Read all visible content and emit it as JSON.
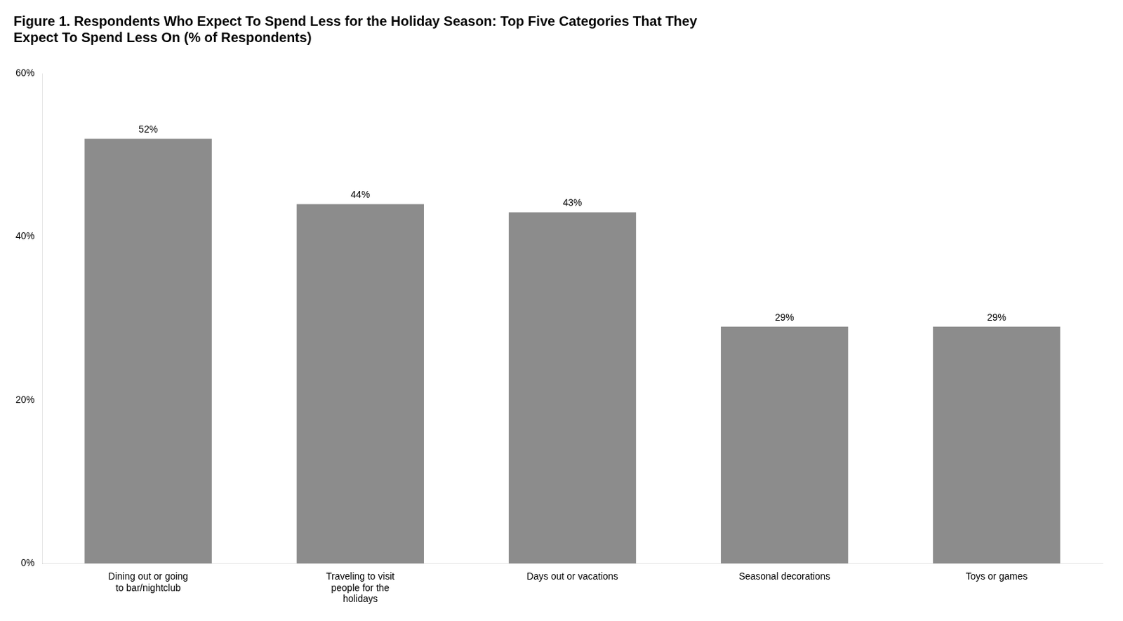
{
  "chart_data": {
    "type": "bar",
    "title": [
      "Figure 1. Respondents Who Expect To Spend Less for the Holiday Season: Top Five Categories That They",
      "Expect To Spend Less On (% of Respondents)"
    ],
    "categories": [
      "Dining out or going\nto bar/nightclub",
      "Traveling to visit\npeople for the\nholidays",
      "Days out or vacations",
      "Seasonal decorations",
      "Toys or games"
    ],
    "values": [
      52,
      44,
      43,
      29,
      29
    ],
    "value_labels": [
      "52%",
      "44%",
      "43%",
      "29%",
      "29%"
    ],
    "data_labels": true,
    "color": "#8c8c8c",
    "ylim": [
      0,
      60
    ],
    "yticks": [
      {
        "value": 0,
        "label": "0%"
      },
      {
        "value": 20,
        "label": "20%"
      },
      {
        "value": 40,
        "label": "40%"
      },
      {
        "value": 60,
        "label": "60%"
      }
    ],
    "grid": false
  }
}
